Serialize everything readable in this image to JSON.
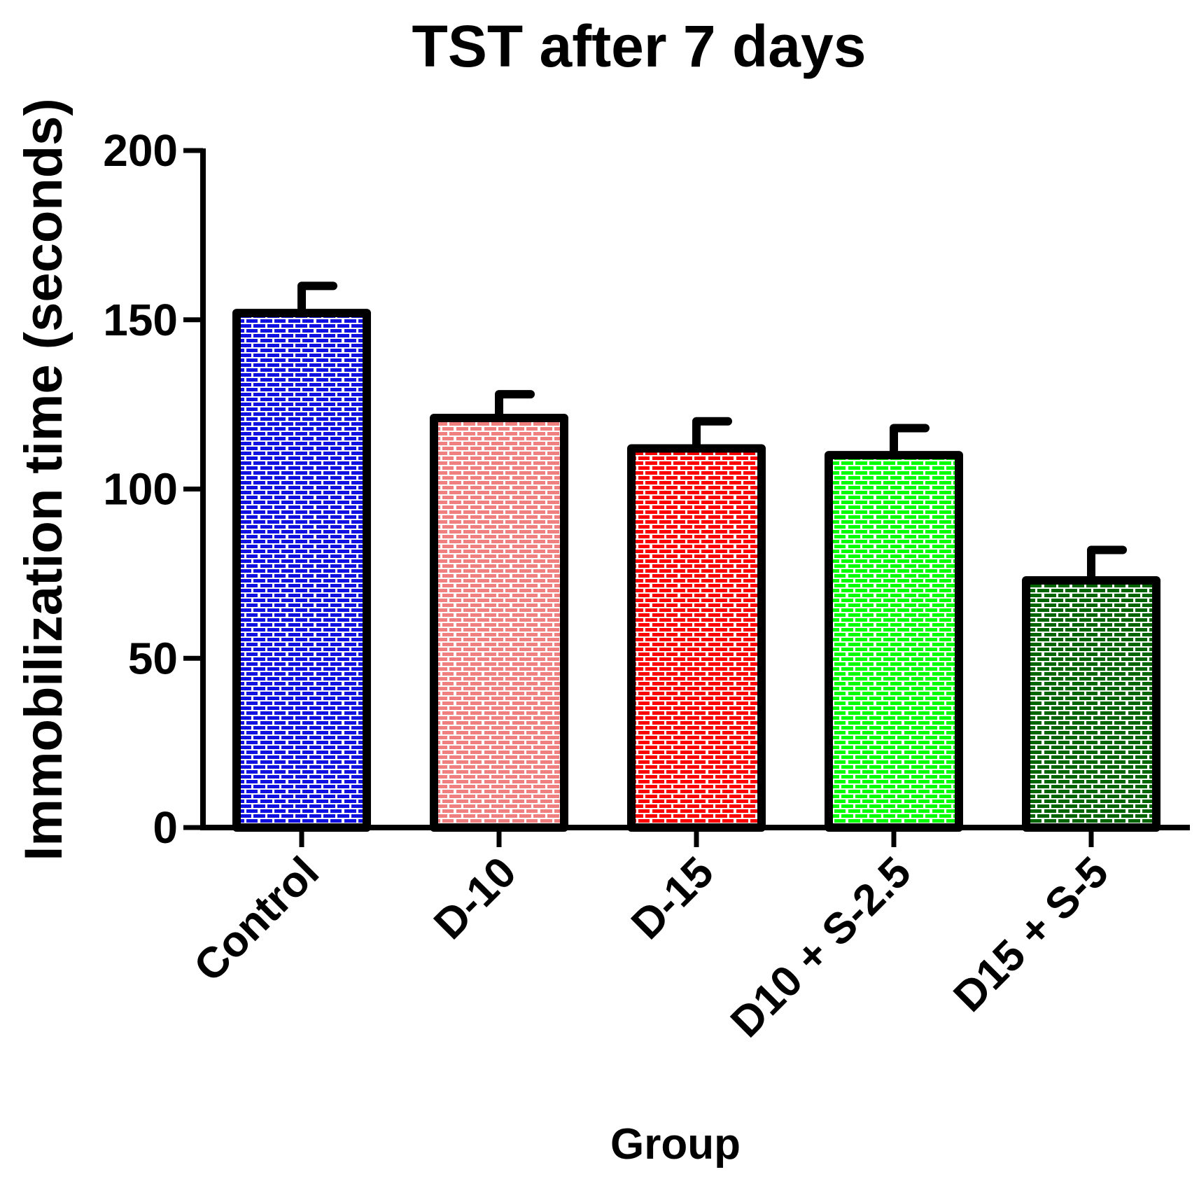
{
  "chart_data": {
    "type": "bar",
    "title": "TST after 7 days",
    "xlabel": "Group",
    "ylabel": "Immobilization time (seconds)",
    "ylim": [
      0,
      200
    ],
    "yticks": [
      0,
      50,
      100,
      150,
      200
    ],
    "grid": false,
    "pattern": "brick",
    "categories": [
      "Control",
      "D-10",
      "D-15",
      "D10 + S-2.5",
      "D15 + S-5"
    ],
    "values": [
      152,
      121,
      112,
      110,
      73
    ],
    "error": [
      8,
      7,
      8,
      8,
      9
    ],
    "colors": [
      "#1010e0",
      "#f08080",
      "#ff0000",
      "#00ff00",
      "#006400"
    ]
  }
}
